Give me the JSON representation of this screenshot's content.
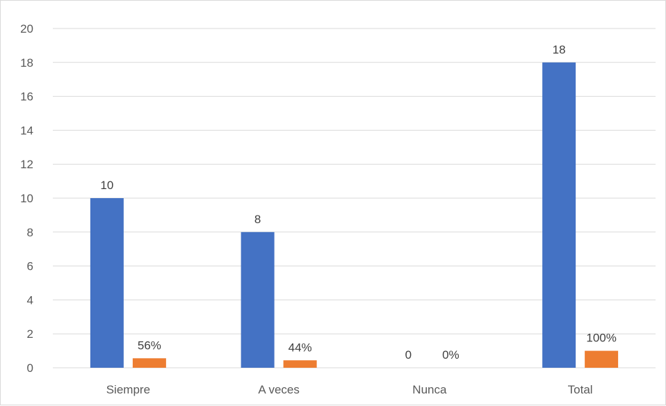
{
  "chart_data": {
    "type": "bar",
    "categories": [
      "Siempre",
      "A veces",
      "Nunca",
      "Total"
    ],
    "series": [
      {
        "values": [
          10,
          8,
          0,
          18
        ],
        "labels": [
          "10",
          "8",
          "0",
          "18"
        ],
        "color": "#4472c4"
      },
      {
        "values": [
          0.56,
          0.44,
          0,
          1.0
        ],
        "labels": [
          "56%",
          "44%",
          "0%",
          "100%"
        ],
        "color": "#ed7d31"
      }
    ],
    "ylim": [
      0,
      20
    ],
    "yticks": [
      "0",
      "2",
      "4",
      "6",
      "8",
      "10",
      "12",
      "14",
      "16",
      "18",
      "20"
    ],
    "grid": true,
    "legend": "none"
  }
}
